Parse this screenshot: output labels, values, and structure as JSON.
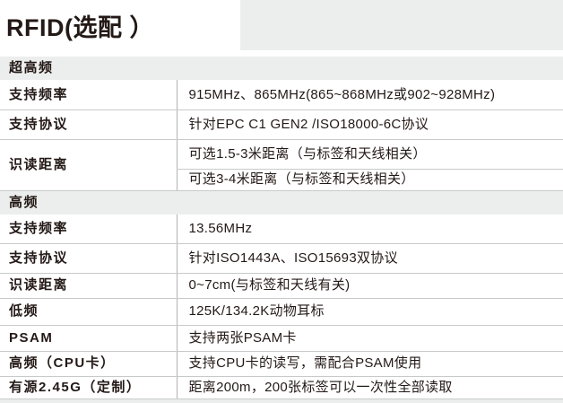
{
  "page": {
    "title": "RFID(选配 ）"
  },
  "table": {
    "sections": [
      {
        "header": "超高频",
        "rows": [
          {
            "label": "支持频率",
            "values": [
              "915MHz、865MHz(865~868MHz或902~928MHz)"
            ]
          },
          {
            "label": "支持协议",
            "values": [
              "针对EPC C1 GEN2 /ISO18000-6C协议"
            ]
          },
          {
            "label": "识读距离",
            "values": [
              "可选1.5-3米距离（与标签和天线相关）",
              "可选3-4米距离（与标签和天线相关）"
            ]
          }
        ]
      },
      {
        "header": "高频",
        "rows": [
          {
            "label": "支持频率",
            "values": [
              "13.56MHz"
            ]
          },
          {
            "label": "支持协议",
            "values": [
              "针对ISO1443A、ISO15693双协议"
            ]
          },
          {
            "label": "识读距离",
            "values": [
              "0~7cm(与标签和天线有关)"
            ]
          },
          {
            "label": "低频",
            "values": [
              "125K/134.2K动物耳标"
            ]
          },
          {
            "label": "PSAM",
            "values": [
              "支持两张PSAM卡"
            ]
          },
          {
            "label": "高频（CPU卡）",
            "values": [
              "支持CPU卡的读写，需配合PSAM使用"
            ]
          },
          {
            "label": "有源2.45G（定制）",
            "values": [
              "距离200m，200张标签可以一次性全部读取"
            ]
          }
        ]
      }
    ]
  },
  "colors": {
    "section_background": "#eceeed",
    "row_border": "#c8cac9",
    "column_divider": "#b0b2b1",
    "text": "#231916",
    "page_background": "#ffffff"
  }
}
